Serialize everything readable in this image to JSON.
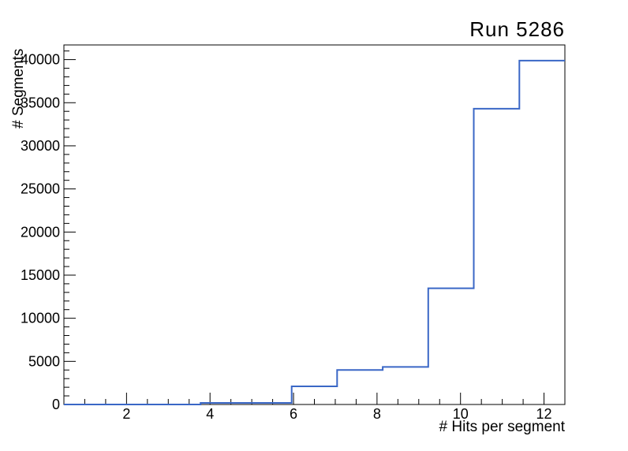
{
  "page": {
    "background": "#ffffff"
  },
  "chart_data": {
    "type": "line",
    "style": "step-histogram",
    "title": "Run 5286",
    "xlabel": "# Hits per segment",
    "ylabel": "# Segments",
    "xlim": [
      0.5,
      12.5
    ],
    "ylim": [
      0,
      41700
    ],
    "grid": false,
    "legend": null,
    "n_bins": 11,
    "bin_edges": [
      0.5,
      1.591,
      2.682,
      3.773,
      4.864,
      5.955,
      7.045,
      8.136,
      9.227,
      10.318,
      11.409,
      12.5
    ],
    "counts": [
      0,
      0,
      0,
      180,
      180,
      2100,
      4000,
      4350,
      13480,
      34300,
      39880
    ],
    "x_major_ticks": [
      2,
      4,
      6,
      8,
      10,
      12
    ],
    "x_tick_labels": [
      "2",
      "4",
      "6",
      "8",
      "10",
      "12"
    ],
    "x_minor_step": 0.5,
    "y_major_ticks": [
      0,
      5000,
      10000,
      15000,
      20000,
      25000,
      30000,
      35000,
      40000
    ],
    "y_tick_labels": [
      "0",
      "5000",
      "10000",
      "15000",
      "20000",
      "25000",
      "30000",
      "35000",
      "40000"
    ],
    "y_minor_step": 1000,
    "line_color": "#3a67c6",
    "line_width": 2,
    "axis_color": "#000000"
  }
}
